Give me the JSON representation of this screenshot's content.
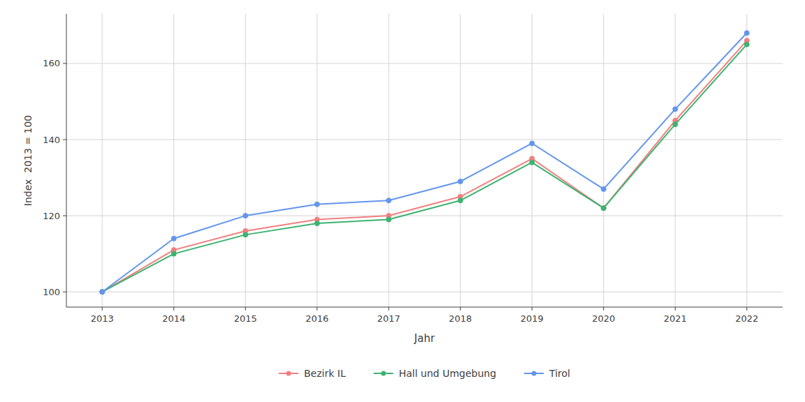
{
  "chart_data": {
    "type": "line",
    "xlabel": "Jahr",
    "ylabel": "Index  2013 = 100",
    "x": [
      2013,
      2014,
      2015,
      2016,
      2017,
      2018,
      2019,
      2020,
      2021,
      2022
    ],
    "series": [
      {
        "name": "Bezirk IL",
        "color": "#F08080",
        "marker": "circle",
        "line_style": "solid",
        "values": [
          100,
          111,
          116,
          119,
          120,
          125,
          135,
          122,
          145,
          166
        ]
      },
      {
        "name": "Hall und Umgebung",
        "color": "#3CB371",
        "marker": "circle",
        "line_style": "solid",
        "values": [
          100,
          110,
          115,
          118,
          119,
          124,
          134,
          122,
          144,
          165
        ]
      },
      {
        "name": "Tirol",
        "color": "#6495ED",
        "marker": "circle",
        "line_style": "solid",
        "values": [
          100,
          114,
          120,
          123,
          124,
          129,
          139,
          127,
          148,
          168
        ]
      }
    ],
    "xlim": [
      2012.5,
      2022.5
    ],
    "xticks": [
      2013,
      2014,
      2015,
      2016,
      2017,
      2018,
      2019,
      2020,
      2021,
      2022
    ],
    "ylim": [
      96,
      173
    ],
    "yticks": [
      100,
      120,
      140,
      160
    ],
    "grid": true,
    "legend": "bottom"
  }
}
